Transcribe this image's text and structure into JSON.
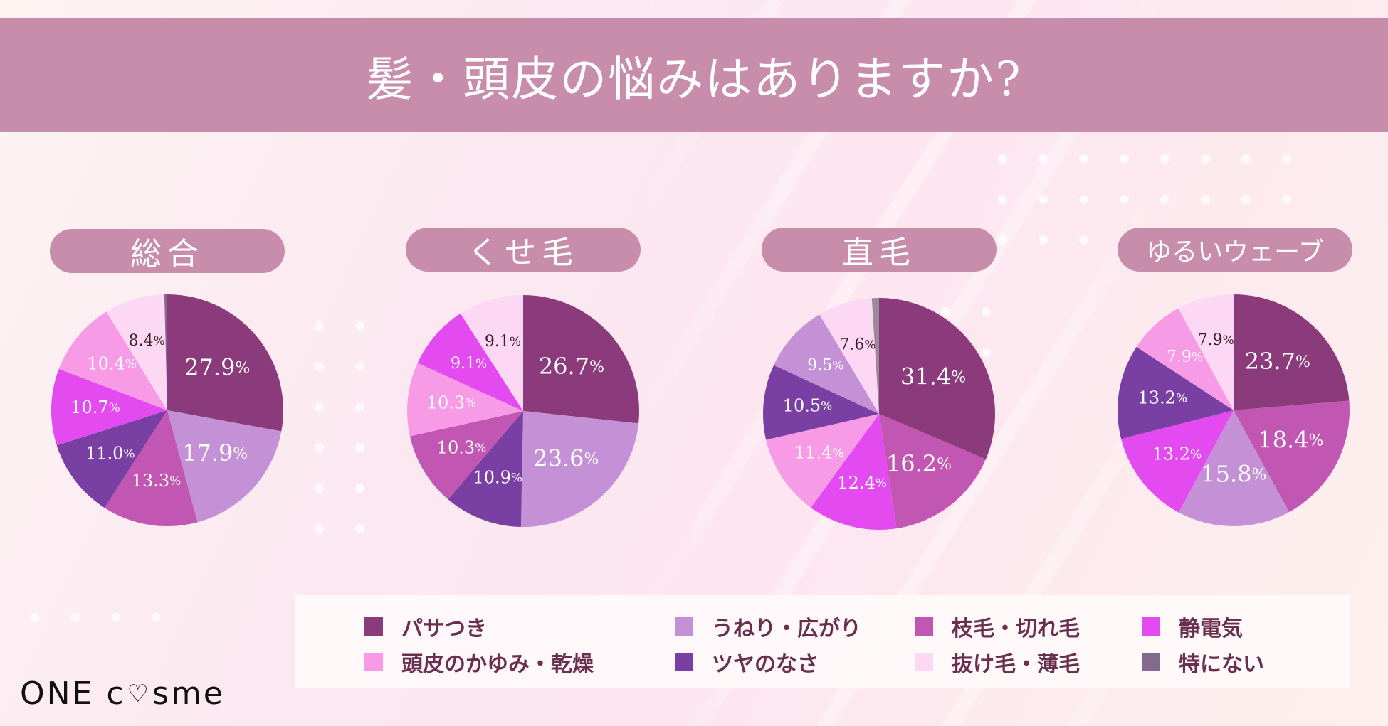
{
  "header": {
    "title": "髪・頭皮の悩みはありますか?"
  },
  "categories": [
    {
      "key": "pasatsuki",
      "label": "パサつき",
      "color": "#8b3a7b"
    },
    {
      "key": "uneri",
      "label": "うねり・広がり",
      "color": "#c491d6"
    },
    {
      "key": "edage",
      "label": "枝毛・切れ毛",
      "color": "#c257b3"
    },
    {
      "key": "seidenki",
      "label": "静電気",
      "color": "#e34bf0"
    },
    {
      "key": "tohi",
      "label": "頭皮のかゆみ・乾燥",
      "color": "#f79be6"
    },
    {
      "key": "tsuya",
      "label": "ツヤのなさ",
      "color": "#7a3fa3"
    },
    {
      "key": "nukege",
      "label": "抜け毛・薄毛",
      "color": "#fdd8f5"
    },
    {
      "key": "none",
      "label": "特にない",
      "color": "#836a8c"
    }
  ],
  "legend": {
    "row1": [
      "パサつき",
      "うねり・広がり",
      "枝毛・切れ毛",
      "静電気"
    ],
    "row2": [
      "頭皮のかゆみ・乾燥",
      "ツヤのなさ",
      "抜け毛・薄毛",
      "特にない"
    ]
  },
  "logo": {
    "left": "ONE c",
    "heart": "♡",
    "right": "sme"
  },
  "chart_data": [
    {
      "type": "pie",
      "title": "総合",
      "slices": [
        {
          "label": "パサつき",
          "value": 27.9,
          "display": "27.9"
        },
        {
          "label": "うねり・広がり",
          "value": 17.9,
          "display": "17.9"
        },
        {
          "label": "枝毛・切れ毛",
          "value": 13.3,
          "display": "13.3"
        },
        {
          "label": "ツヤのなさ",
          "value": 11.0,
          "display": "11.0"
        },
        {
          "label": "静電気",
          "value": 10.7,
          "display": "10.7"
        },
        {
          "label": "頭皮のかゆみ・乾燥",
          "value": 10.4,
          "display": "10.4"
        },
        {
          "label": "抜け毛・薄毛",
          "value": 8.4,
          "display": "8.4"
        },
        {
          "label": "特にない",
          "value": 0.4,
          "display": ""
        }
      ]
    },
    {
      "type": "pie",
      "title": "くせ毛",
      "slices": [
        {
          "label": "パサつき",
          "value": 26.7,
          "display": "26.7"
        },
        {
          "label": "うねり・広がり",
          "value": 23.6,
          "display": "23.6"
        },
        {
          "label": "ツヤのなさ",
          "value": 10.9,
          "display": "10.9"
        },
        {
          "label": "枝毛・切れ毛",
          "value": 10.3,
          "display": "10.3"
        },
        {
          "label": "頭皮のかゆみ・乾燥",
          "value": 10.3,
          "display": "10.3"
        },
        {
          "label": "静電気",
          "value": 9.1,
          "display": "9.1"
        },
        {
          "label": "抜け毛・薄毛",
          "value": 9.1,
          "display": "9.1"
        }
      ]
    },
    {
      "type": "pie",
      "title": "直毛",
      "slices": [
        {
          "label": "パサつき",
          "value": 31.4,
          "display": "31.4"
        },
        {
          "label": "枝毛・切れ毛",
          "value": 16.2,
          "display": "16.2"
        },
        {
          "label": "静電気",
          "value": 12.4,
          "display": "12.4"
        },
        {
          "label": "頭皮のかゆみ・乾燥",
          "value": 11.4,
          "display": "11.4"
        },
        {
          "label": "ツヤのなさ",
          "value": 10.5,
          "display": "10.5"
        },
        {
          "label": "うねり・広がり",
          "value": 9.5,
          "display": "9.5"
        },
        {
          "label": "抜け毛・薄毛",
          "value": 7.6,
          "display": "7.6"
        },
        {
          "label": "特にない",
          "value": 1.0,
          "display": ""
        }
      ]
    },
    {
      "type": "pie",
      "title": "ゆるいウェーブ",
      "slices": [
        {
          "label": "パサつき",
          "value": 23.7,
          "display": "23.7"
        },
        {
          "label": "枝毛・切れ毛",
          "value": 18.4,
          "display": "18.4"
        },
        {
          "label": "うねり・広がり",
          "value": 15.8,
          "display": "15.8"
        },
        {
          "label": "静電気",
          "value": 13.2,
          "display": "13.2"
        },
        {
          "label": "ツヤのなさ",
          "value": 13.2,
          "display": "13.2"
        },
        {
          "label": "頭皮のかゆみ・乾燥",
          "value": 7.9,
          "display": "7.9"
        },
        {
          "label": "抜け毛・薄毛",
          "value": 7.9,
          "display": "7.9"
        }
      ]
    }
  ]
}
